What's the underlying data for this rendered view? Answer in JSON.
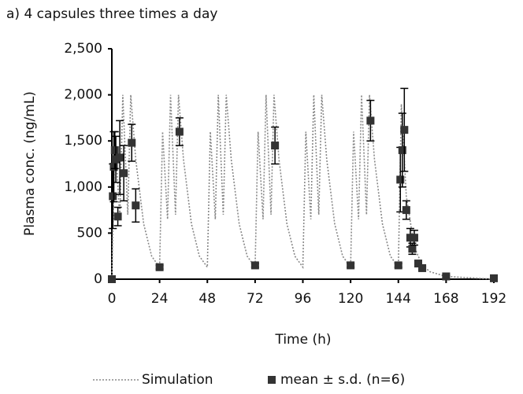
{
  "chart_data": {
    "type": "scatter",
    "title": "a) 4 capsules three times a day",
    "x_label": "Time (h)",
    "y_label": "Plasma conc. (ng/mL)",
    "xlim": [
      0,
      192
    ],
    "ylim": [
      0,
      2500
    ],
    "xticks": [
      0,
      24,
      48,
      72,
      96,
      120,
      144,
      168,
      192
    ],
    "yticks": [
      0,
      500,
      {
        "value": 1000,
        "label": "1,000"
      },
      {
        "value": 1500,
        "label": "1,500"
      },
      {
        "value": 2000,
        "label": "2,000"
      },
      {
        "value": 2500,
        "label": "2,500"
      }
    ],
    "grid": false,
    "legend": "bottom",
    "series": [
      {
        "name": "Simulation",
        "type": "line",
        "color": "#888888",
        "x": [
          0,
          1.5,
          4,
          5.5,
          8,
          9.5,
          12,
          16,
          20,
          24,
          25.5,
          28,
          29.5,
          32,
          33.5,
          36,
          40,
          44,
          48,
          49.5,
          52,
          53.5,
          56,
          57.5,
          60,
          64,
          68,
          72,
          73.5,
          76,
          77.5,
          80,
          81.5,
          84,
          88,
          92,
          96,
          97.5,
          100,
          101.5,
          104,
          105.5,
          108,
          112,
          116,
          120,
          121.5,
          124,
          125.5,
          128,
          129.5,
          132,
          136,
          140,
          144,
          145.5,
          148,
          152,
          156,
          160,
          168,
          192
        ],
        "values": [
          0,
          1600,
          650,
          2000,
          700,
          2000,
          1300,
          600,
          250,
          130,
          1600,
          650,
          2000,
          700,
          2000,
          1300,
          600,
          250,
          130,
          1600,
          650,
          2000,
          700,
          2000,
          1300,
          600,
          250,
          130,
          1600,
          650,
          2000,
          700,
          2000,
          1300,
          600,
          250,
          130,
          1600,
          650,
          2000,
          700,
          2000,
          1300,
          600,
          250,
          130,
          1600,
          650,
          2000,
          700,
          2000,
          1300,
          600,
          250,
          130,
          1900,
          900,
          350,
          150,
          80,
          30,
          0
        ]
      },
      {
        "name": "mean ± s.d. (n=6)",
        "type": "errorbar",
        "color": "#333333",
        "x": [
          0,
          0.5,
          1,
          1.5,
          2,
          3,
          4,
          6,
          10,
          12,
          24,
          34,
          72,
          82,
          120,
          130,
          144,
          145,
          146,
          147,
          148,
          150,
          151,
          152,
          154,
          156,
          168,
          192
        ],
        "values": [
          0,
          900,
          1220,
          1400,
          1300,
          680,
          1320,
          1150,
          1480,
          800,
          130,
          1600,
          150,
          1450,
          150,
          1720,
          150,
          1080,
          1400,
          1620,
          750,
          450,
          330,
          450,
          170,
          120,
          30,
          10
        ],
        "errors": [
          0,
          350,
          380,
          200,
          250,
          100,
          400,
          300,
          200,
          180,
          20,
          150,
          20,
          200,
          20,
          220,
          20,
          350,
          400,
          450,
          100,
          100,
          60,
          80,
          30,
          20,
          10,
          10
        ]
      }
    ]
  }
}
